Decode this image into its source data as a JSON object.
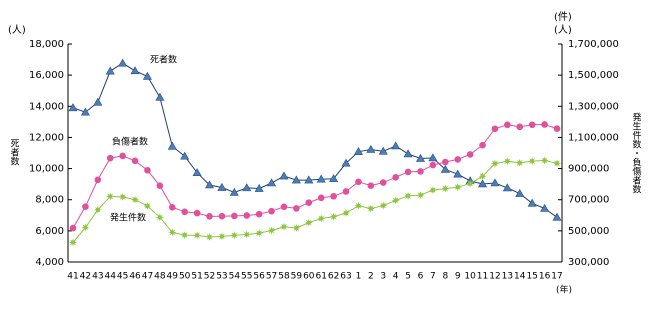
{
  "chart_data": {
    "type": "line",
    "left_unit": "(人)",
    "right_unit_top": "(件)",
    "right_unit_bottom": "(人)",
    "y_label": "死者数",
    "y2_label": "発生件数・負傷者数",
    "x_unit": "(年)",
    "categories": [
      "41",
      "42",
      "43",
      "44",
      "45",
      "46",
      "47",
      "48",
      "49",
      "50",
      "51",
      "52",
      "53",
      "54",
      "55",
      "56",
      "57",
      "58",
      "59",
      "60",
      "61",
      "62",
      "63",
      "1",
      "2",
      "3",
      "4",
      "5",
      "6",
      "7",
      "8",
      "9",
      "10",
      "11",
      "12",
      "13",
      "14",
      "15",
      "16",
      "17"
    ],
    "ylim": [
      4000,
      18000
    ],
    "yticks": [
      {
        "value": 4000,
        "label": "4,000"
      },
      {
        "value": 6000,
        "label": "6,000"
      },
      {
        "value": 8000,
        "label": "8,000"
      },
      {
        "value": 10000,
        "label": "10,000"
      },
      {
        "value": 12000,
        "label": "12,000"
      },
      {
        "value": 14000,
        "label": "14,000"
      },
      {
        "value": 16000,
        "label": "16,000"
      },
      {
        "value": 18000,
        "label": "18,000"
      }
    ],
    "y2lim": [
      300000,
      1700000
    ],
    "y2ticks": [
      {
        "value": 300000,
        "label": "300,000"
      },
      {
        "value": 500000,
        "label": "500,000"
      },
      {
        "value": 700000,
        "label": "700,000"
      },
      {
        "value": 900000,
        "label": "900,000"
      },
      {
        "value": 1100000,
        "label": "1,100,000"
      },
      {
        "value": 1300000,
        "label": "1,300,000"
      },
      {
        "value": 1500000,
        "label": "1,500,000"
      },
      {
        "value": 1700000,
        "label": "1,700,000"
      }
    ],
    "series": [
      {
        "name": "死者数",
        "color": "#4a7ebb",
        "marker": "triangle",
        "axis": "y",
        "values": [
          13904,
          13618,
          14256,
          16257,
          16765,
          16278,
          15918,
          14574,
          11432,
          10792,
          9734,
          8945,
          8783,
          8466,
          8760,
          8719,
          9073,
          9520,
          9262,
          9261,
          9317,
          9347,
          10344,
          11086,
          11227,
          11109,
          11451,
          10942,
          10649,
          10684,
          9942,
          9640,
          9211,
          9012,
          9073,
          8757,
          8396,
          7768,
          7436,
          6871
        ]
      },
      {
        "name": "負傷者数",
        "color": "#e0509c",
        "marker": "circle",
        "axis": "y2",
        "values": [
          517775,
          655377,
          828071,
          967000,
          981096,
          949689,
          889198,
          789948,
          651420,
          622467,
          613957,
          593211,
          594116,
          596282,
          598719,
          607346,
          626192,
          654822,
          644321,
          681346,
          712330,
          722179,
          752845,
          814832,
          790295,
          810245,
          844003,
          878633,
          881723,
          922677,
          942204,
          958925,
          990675,
          1050397,
          1155697,
          1181039,
          1168029,
          1181431,
          1183120,
          1156633
        ]
      },
      {
        "name": "発生件数",
        "color": "#8cc63f",
        "marker": "star",
        "axis": "y2",
        "values": [
          425944,
          521481,
          635056,
          720880,
          718080,
          700290,
          659283,
          586713,
          490452,
          472938,
          471041,
          460649,
          464037,
          471573,
          476677,
          485578,
          502261,
          526362,
          518642,
          552788,
          579190,
          590723,
          614481,
          661363,
          643097,
          662388,
          695345,
          724675,
          729461,
          761794,
          771085,
          780401,
          803882,
          850363,
          931934,
          947169,
          936721,
          947993,
          952191,
          933828
        ]
      }
    ]
  }
}
